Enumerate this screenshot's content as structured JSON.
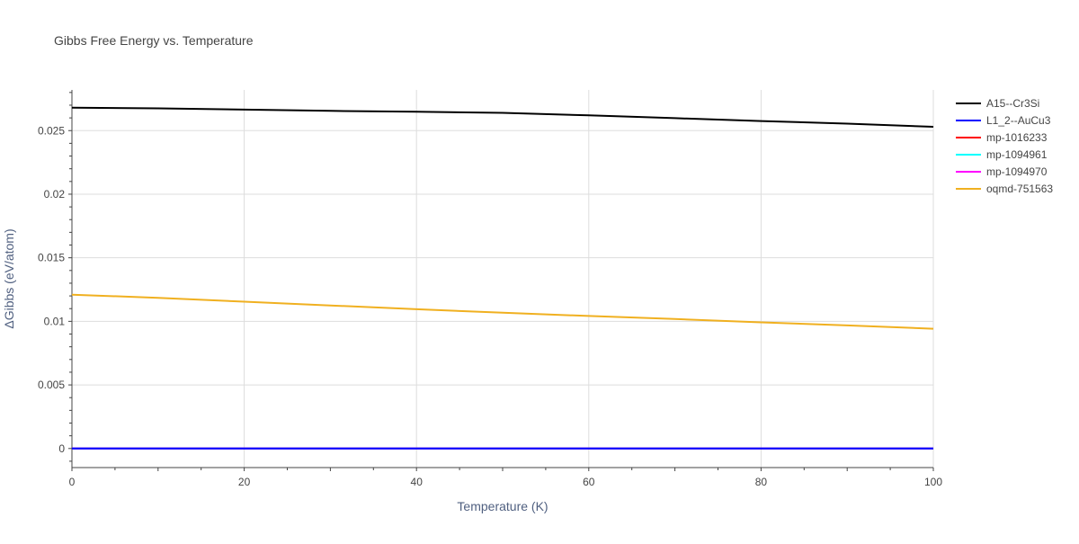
{
  "chart_data": {
    "type": "line",
    "title": "Gibbs Free Energy vs. Temperature",
    "xlabel": "Temperature (K)",
    "ylabel": "ΔGibbs (eV/atom)",
    "xlim": [
      0,
      100
    ],
    "ylim": [
      -0.0015,
      0.0282
    ],
    "x_ticks": [
      0,
      20,
      40,
      60,
      80,
      100
    ],
    "x_tick_labels": [
      "0",
      "20",
      "40",
      "60",
      "80",
      "100"
    ],
    "y_ticks": [
      0,
      0.005,
      0.01,
      0.015,
      0.02,
      0.025
    ],
    "y_tick_labels": [
      "0",
      "0.005",
      "0.01",
      "0.015",
      "0.02",
      "0.025"
    ],
    "grid": true,
    "legend_position": "top-right, outside plot",
    "series": [
      {
        "name": "A15--Cr3Si",
        "color": "#000000",
        "x": [
          0,
          10,
          20,
          30,
          40,
          50,
          60,
          70,
          80,
          90,
          100
        ],
        "y": [
          0.0268,
          0.02675,
          0.02665,
          0.02655,
          0.02648,
          0.0264,
          0.0262,
          0.02598,
          0.02575,
          0.02555,
          0.0253
        ]
      },
      {
        "name": "L1_2--AuCu3",
        "color": "#0000ff",
        "x": [
          0,
          100
        ],
        "y": [
          0,
          0
        ]
      },
      {
        "name": "mp-1016233",
        "color": "#ff0000",
        "x": [
          0,
          100
        ],
        "y": [
          0,
          0
        ]
      },
      {
        "name": "mp-1094961",
        "color": "#00ffff",
        "x": [
          0,
          100
        ],
        "y": [
          0,
          0
        ]
      },
      {
        "name": "mp-1094970",
        "color": "#ff00ff",
        "x": [
          0,
          100
        ],
        "y": [
          0,
          0
        ]
      },
      {
        "name": "oqmd-751563",
        "color": "#f0b020",
        "x": [
          0,
          10,
          20,
          30,
          40,
          50,
          60,
          70,
          80,
          90,
          100
        ],
        "y": [
          0.0121,
          0.01185,
          0.01155,
          0.01125,
          0.01095,
          0.01068,
          0.01042,
          0.01018,
          0.00992,
          0.00968,
          0.00942
        ]
      }
    ]
  }
}
